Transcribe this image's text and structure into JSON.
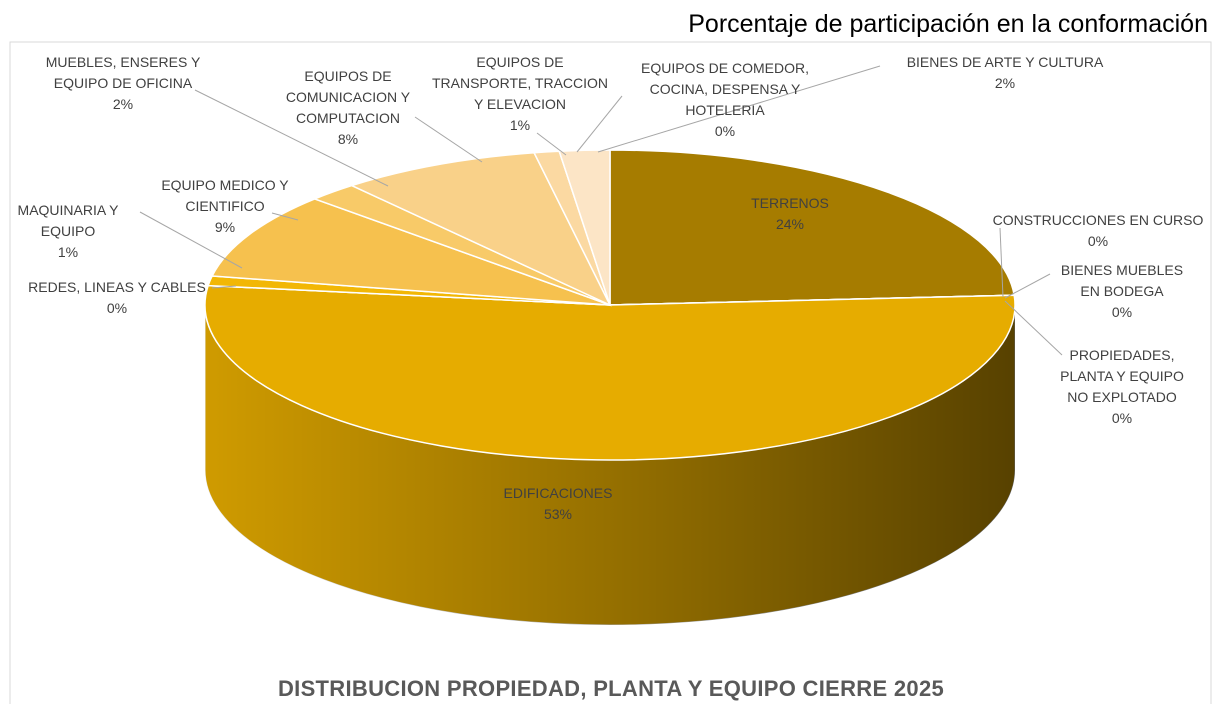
{
  "chart_data": {
    "type": "pie",
    "title": "DISTRIBUCION PROPIEDAD, PLANTA Y EQUIPO CIERRE  2025",
    "subtitle": "Porcentaje de participación en la conformación",
    "categories": [
      "TERRENOS",
      "CONSTRUCCIONES EN CURSO",
      "BIENES MUEBLES EN BODEGA",
      "PROPIEDADES, PLANTA Y EQUIPO NO EXPLOTADO",
      "EDIFICACIONES",
      "REDES, LINEAS Y CABLES",
      "MAQUINARIA Y EQUIPO",
      "EQUIPO MEDICO Y CIENTIFICO",
      "MUEBLES, ENSERES Y EQUIPO DE OFICINA",
      "EQUIPOS DE COMUNICACION Y COMPUTACION",
      "EQUIPOS DE TRANSPORTE, TRACCION Y ELEVACION",
      "EQUIPOS DE COMEDOR, COCINA, DESPENSA Y HOTELERIA",
      "BIENES DE ARTE Y CULTURA"
    ],
    "values": [
      24,
      0,
      0,
      0,
      53,
      0,
      1,
      9,
      2,
      8,
      1,
      0,
      2
    ],
    "value_labels": [
      "24%",
      "0%",
      "0%",
      "0%",
      "53%",
      "0%",
      "1%",
      "9%",
      "2%",
      "8%",
      "1%",
      "0%",
      "2%"
    ],
    "colors": [
      "#a67c00",
      "#c89400",
      "#b88a10",
      "#d9a410",
      "#e6ac00",
      "#dca600",
      "#f2b705",
      "#f6c14e",
      "#f8ca68",
      "#f9d189",
      "#fbd9a2",
      "#fcdfb2",
      "#fce5c6"
    ]
  }
}
